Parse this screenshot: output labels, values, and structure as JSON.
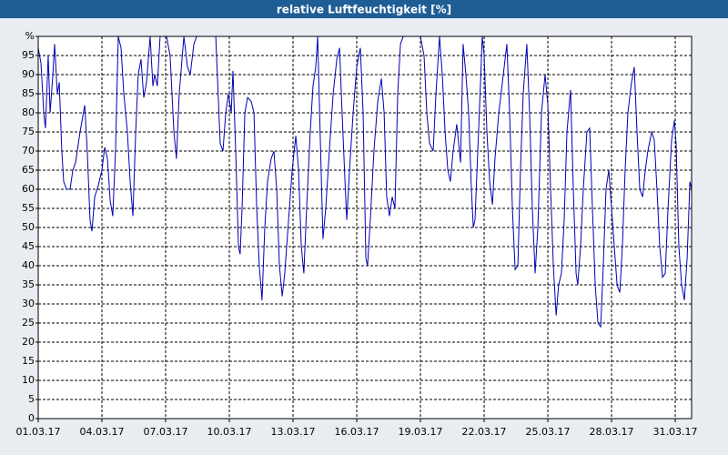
{
  "chart_data": {
    "type": "line",
    "title": "relative Luftfeuchtigkeit [%]",
    "color": "#0000b4",
    "grid": true,
    "xlim": [
      1,
      31.77
    ],
    "xticks": [
      {
        "value": 1,
        "label": "01.03.17"
      },
      {
        "value": 4,
        "label": "04.03.17"
      },
      {
        "value": 7,
        "label": "07.03.17"
      },
      {
        "value": 10,
        "label": "10.03.17"
      },
      {
        "value": 13,
        "label": "13.03.17"
      },
      {
        "value": 16,
        "label": "16.03.17"
      },
      {
        "value": 19,
        "label": "19.03.17"
      },
      {
        "value": 22,
        "label": "22.03.17"
      },
      {
        "value": 25,
        "label": "25.03.17"
      },
      {
        "value": 28,
        "label": "28.03.17"
      },
      {
        "value": 31,
        "label": "31.03.17"
      }
    ],
    "ylim": [
      0,
      100
    ],
    "yticks": [
      0,
      5,
      10,
      15,
      20,
      25,
      30,
      35,
      40,
      45,
      50,
      55,
      60,
      65,
      70,
      75,
      80,
      85,
      90,
      95,
      {
        "value": 100,
        "label": "%"
      }
    ],
    "x": [
      1.0,
      1.13,
      1.26,
      1.34,
      1.47,
      1.56,
      1.69,
      1.77,
      1.9,
      1.99,
      2.11,
      2.2,
      2.33,
      2.5,
      2.63,
      2.76,
      2.97,
      3.19,
      3.31,
      3.44,
      3.53,
      3.66,
      3.83,
      4.0,
      4.13,
      4.26,
      4.39,
      4.51,
      4.64,
      4.77,
      4.9,
      5.03,
      5.2,
      5.33,
      5.46,
      5.59,
      5.71,
      5.84,
      5.97,
      6.1,
      6.27,
      6.4,
      6.49,
      6.61,
      6.74,
      7.04,
      7.21,
      7.39,
      7.51,
      7.64,
      7.86,
      8.03,
      8.16,
      8.33,
      8.46,
      9.36,
      9.57,
      9.7,
      9.83,
      9.96,
      10.09,
      10.17,
      10.3,
      10.43,
      10.51,
      10.6,
      10.73,
      10.86,
      11.03,
      11.16,
      11.29,
      11.41,
      11.54,
      11.67,
      11.8,
      11.97,
      12.1,
      12.23,
      12.36,
      12.49,
      12.61,
      12.79,
      12.96,
      13.13,
      13.26,
      13.39,
      13.51,
      13.64,
      13.81,
      13.94,
      14.07,
      14.16,
      14.29,
      14.41,
      14.54,
      14.71,
      14.89,
      15.06,
      15.19,
      15.31,
      15.44,
      15.53,
      15.66,
      15.83,
      16.0,
      16.17,
      16.3,
      16.43,
      16.51,
      16.64,
      16.81,
      16.99,
      17.16,
      17.29,
      17.41,
      17.54,
      17.67,
      17.8,
      17.93,
      18.06,
      18.19,
      19.0,
      19.17,
      19.3,
      19.43,
      19.6,
      19.73,
      19.9,
      20.03,
      20.16,
      20.29,
      20.41,
      20.54,
      20.71,
      20.89,
      21.01,
      21.14,
      21.27,
      21.4,
      21.49,
      21.57,
      21.7,
      21.83,
      21.91,
      22.0,
      22.13,
      22.26,
      22.39,
      22.51,
      22.69,
      22.86,
      23.07,
      23.2,
      23.33,
      23.46,
      23.59,
      23.71,
      23.84,
      24.01,
      24.14,
      24.27,
      24.4,
      24.53,
      24.7,
      24.87,
      25.0,
      25.13,
      25.26,
      25.39,
      25.51,
      25.64,
      25.77,
      25.9,
      26.07,
      26.2,
      26.33,
      26.41,
      26.54,
      26.67,
      26.84,
      26.97,
      27.1,
      27.23,
      27.36,
      27.49,
      27.61,
      27.74,
      27.87,
      28.0,
      28.13,
      28.26,
      28.39,
      28.51,
      28.64,
      28.77,
      28.94,
      29.07,
      29.2,
      29.33,
      29.46,
      29.59,
      29.71,
      29.89,
      30.01,
      30.14,
      30.27,
      30.4,
      30.53,
      30.66,
      30.83,
      30.96,
      31.04,
      31.17,
      31.3,
      31.43,
      31.56,
      31.69,
      31.77
    ],
    "values": [
      97,
      93,
      80,
      76,
      95,
      80,
      90,
      98,
      85,
      88,
      70,
      62,
      60,
      60,
      65,
      67,
      75,
      82,
      70,
      52,
      49,
      58,
      61,
      65,
      71,
      68,
      57,
      53,
      70,
      100,
      97,
      85,
      75,
      62,
      53,
      75,
      90,
      94,
      84,
      88,
      100,
      87,
      90,
      87,
      100,
      100,
      95,
      75,
      68,
      85,
      100,
      92,
      90,
      98,
      100,
      100,
      72,
      70,
      80,
      85,
      80,
      91,
      70,
      45,
      43,
      55,
      80,
      84,
      83,
      80,
      55,
      40,
      31,
      50,
      62,
      68,
      70,
      60,
      40,
      32,
      38,
      52,
      65,
      74,
      65,
      45,
      38,
      55,
      75,
      87,
      92,
      100,
      72,
      47,
      55,
      70,
      85,
      94,
      97,
      80,
      63,
      52,
      65,
      80,
      92,
      97,
      80,
      42,
      40,
      52,
      70,
      83,
      89,
      80,
      58,
      53,
      58,
      55,
      85,
      98,
      100,
      100,
      95,
      80,
      72,
      70,
      85,
      100,
      90,
      75,
      65,
      62,
      70,
      77,
      67,
      98,
      90,
      80,
      60,
      50,
      52,
      70,
      88,
      100,
      95,
      75,
      62,
      56,
      68,
      80,
      88,
      98,
      80,
      55,
      39,
      40,
      65,
      85,
      98,
      80,
      55,
      38,
      50,
      80,
      90,
      82,
      60,
      40,
      27,
      35,
      38,
      52,
      75,
      86,
      60,
      38,
      35,
      45,
      60,
      75,
      76,
      55,
      35,
      25,
      24,
      40,
      60,
      65,
      55,
      45,
      35,
      33,
      45,
      65,
      80,
      88,
      92,
      75,
      60,
      58,
      65,
      70,
      75,
      73,
      60,
      45,
      37,
      38,
      55,
      73,
      78,
      72,
      45,
      35,
      31,
      42,
      62,
      60
    ]
  }
}
